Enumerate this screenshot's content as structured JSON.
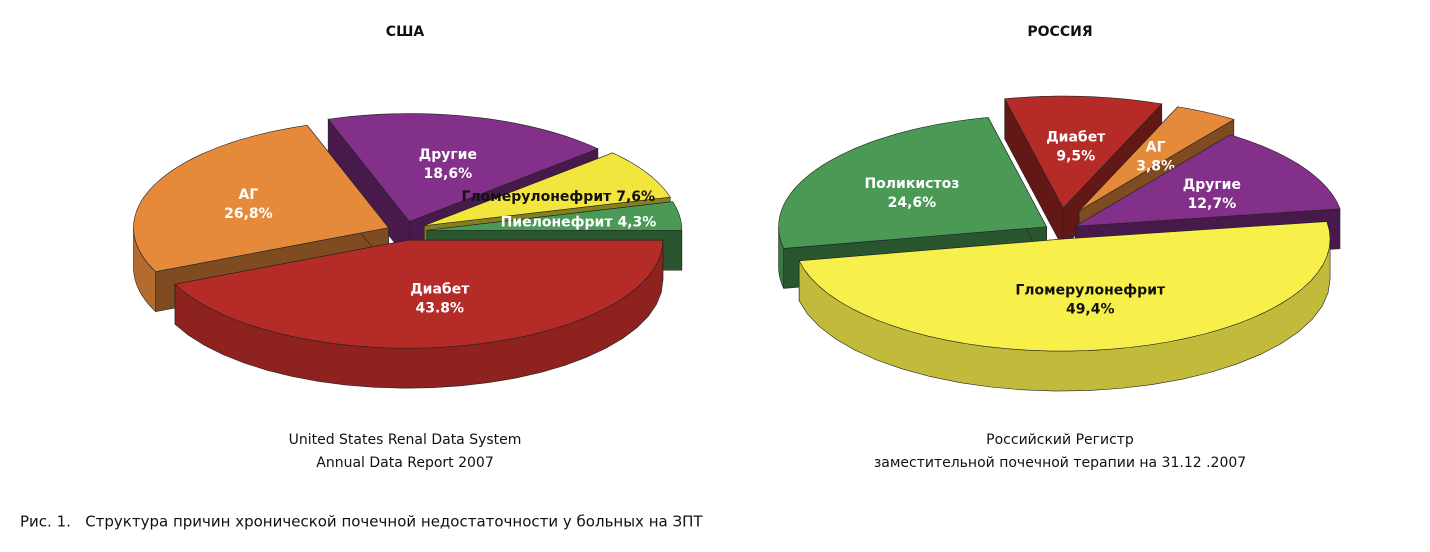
{
  "chart_data": [
    {
      "type": "pie",
      "title": "США",
      "categories": [
        "Диабет",
        "АГ",
        "Другие",
        "Гломерулонефрит",
        "Пиелонефрит"
      ],
      "values": [
        43.8,
        26.8,
        18.6,
        7.6,
        4.3
      ],
      "value_labels": [
        "43.8%",
        "26,8%",
        "18,6%",
        "7,6%",
        "4,3%"
      ],
      "colors": [
        "#b52b27",
        "#e58a3a",
        "#823089",
        "#f2e63e",
        "#4a9a55"
      ],
      "source": [
        "United States Renal Data System",
        "Annual Data Report 2007"
      ]
    },
    {
      "type": "pie",
      "title": "РОССИЯ",
      "categories": [
        "Гломерулонефрит",
        "Поликистоз",
        "Диабет",
        "АГ",
        "Другие"
      ],
      "values": [
        49.4,
        24.6,
        9.5,
        3.8,
        12.7
      ],
      "value_labels": [
        "49,4%",
        "24,6%",
        "9,5%",
        "3,8%",
        "12,7%"
      ],
      "colors": [
        "#f7ef4a",
        "#4a9a55",
        "#b52b27",
        "#e58a3a",
        "#823089"
      ],
      "source": [
        "Российский Регистр",
        "заместительной почечной терапии на 31.12 .2007"
      ]
    }
  ],
  "caption": "Рис. 1.   Структура причин хронической почечной недостаточности у больных на ЗПТ"
}
